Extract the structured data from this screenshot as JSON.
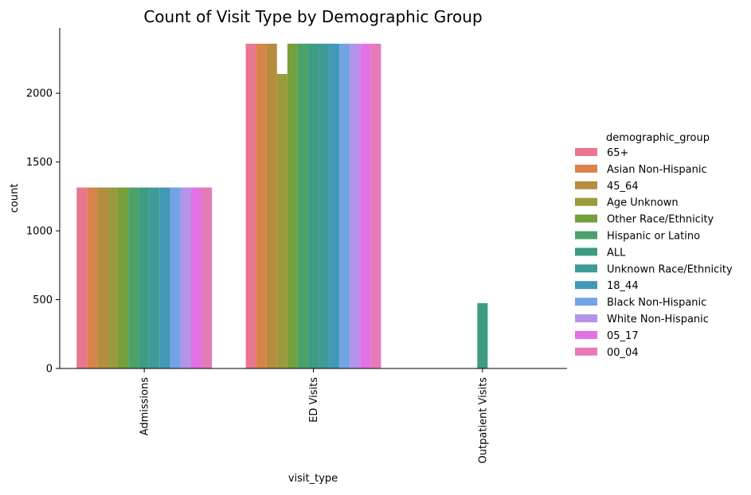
{
  "chart_data": {
    "type": "bar",
    "title": "Count of Visit Type by Demographic Group",
    "xlabel": "visit_type",
    "ylabel": "count",
    "ylim": [
      0,
      2475
    ],
    "yticks": [
      0,
      500,
      1000,
      1500,
      2000
    ],
    "categories": [
      "Admissions",
      "ED Visits",
      "Outpatient Visits"
    ],
    "legend_title": "demographic_group",
    "legend_position": "right",
    "grid": false,
    "series": [
      {
        "name": "65+",
        "color": "#e8768f",
        "values": [
          1315,
          2360,
          0
        ]
      },
      {
        "name": "Asian Non-Hispanic",
        "color": "#d8834a",
        "values": [
          1315,
          2360,
          0
        ]
      },
      {
        "name": "45_64",
        "color": "#b48d3e",
        "values": [
          1315,
          2360,
          0
        ]
      },
      {
        "name": "Age Unknown",
        "color": "#9b9a3c",
        "values": [
          1315,
          2140,
          0
        ]
      },
      {
        "name": "Other Race/Ethnicity",
        "color": "#73a03c",
        "values": [
          1315,
          2360,
          0
        ]
      },
      {
        "name": "Hispanic or Latino",
        "color": "#4aa26a",
        "values": [
          1315,
          2360,
          0
        ]
      },
      {
        "name": "ALL",
        "color": "#3e9c85",
        "values": [
          1315,
          2360,
          475
        ]
      },
      {
        "name": "Unknown Race/Ethnicity",
        "color": "#3f9a98",
        "values": [
          1315,
          2360,
          0
        ]
      },
      {
        "name": "18_44",
        "color": "#4199b6",
        "values": [
          1315,
          2360,
          0
        ]
      },
      {
        "name": "Black Non-Hispanic",
        "color": "#72a3e4",
        "values": [
          1315,
          2360,
          0
        ]
      },
      {
        "name": "White Non-Hispanic",
        "color": "#b494e8",
        "values": [
          1315,
          2360,
          0
        ]
      },
      {
        "name": "05_17",
        "color": "#e271e3",
        "values": [
          1315,
          2360,
          0
        ]
      },
      {
        "name": "00_04",
        "color": "#e67ab8",
        "values": [
          1315,
          2360,
          0
        ]
      }
    ]
  }
}
